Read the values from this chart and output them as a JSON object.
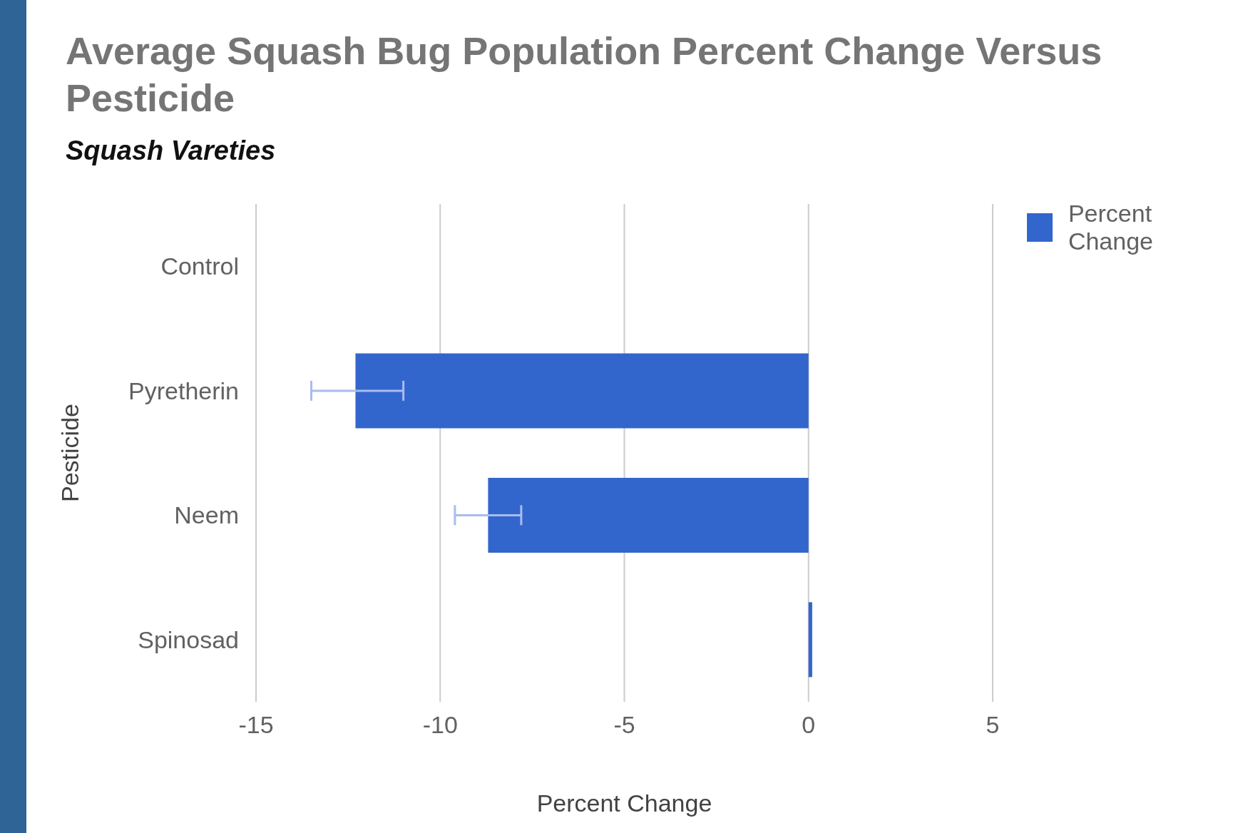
{
  "chart_data": {
    "type": "bar",
    "orientation": "horizontal",
    "title": "Average Squash Bug Population Percent Change Versus Pesticide",
    "subtitle": "Squash Vareties",
    "xlabel": "Percent Change",
    "ylabel": "Pesticide",
    "categories": [
      "Control",
      "Pyretherin",
      "Neem",
      "Spinosad"
    ],
    "series": [
      {
        "name": "Percent Change",
        "color": "#3366cc",
        "values": [
          0,
          -12.3,
          -8.7,
          0.1
        ],
        "errors": [
          null,
          [
            -13.5,
            -11
          ],
          [
            -9.6,
            -7.8
          ],
          null
        ]
      }
    ],
    "xlim": [
      -15,
      5
    ],
    "xticks": [
      -15,
      -10,
      -5,
      0,
      5
    ],
    "grid": "x",
    "legend": "top right"
  }
}
